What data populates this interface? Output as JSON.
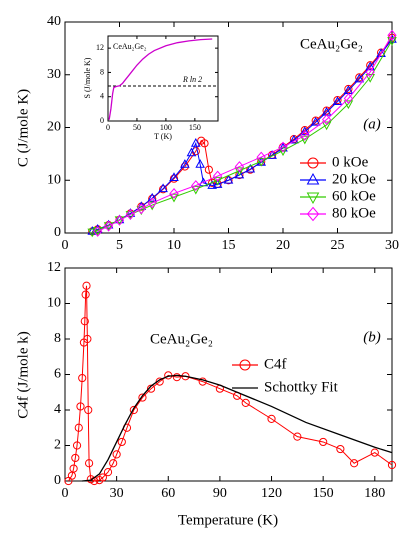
{
  "chart_data": [
    {
      "type": "line",
      "title": "CeAu₂Ge₂",
      "annotation": "(a)",
      "ylabel": "C (J/mole K)",
      "xlim": [
        0,
        30
      ],
      "xticks": [
        0,
        5,
        10,
        15,
        20,
        25,
        30
      ],
      "ylim": [
        0,
        40
      ],
      "yticks": [
        0,
        10,
        20,
        30,
        40
      ],
      "legend": "right",
      "series": [
        {
          "name": "0  kOe",
          "color": "#ff0000",
          "marker": "circle",
          "x": [
            2.5,
            3,
            4,
            5,
            6,
            7,
            8,
            9,
            10,
            11,
            12,
            12.5,
            12.8,
            13.2,
            13.5,
            14,
            15,
            16,
            17,
            18,
            19,
            20,
            21,
            22,
            23,
            24,
            25,
            26,
            27,
            28,
            29,
            30
          ],
          "values": [
            0.3,
            0.7,
            1.5,
            2.5,
            3.7,
            5,
            6.5,
            8.3,
            10.3,
            12.6,
            15.5,
            17.5,
            17,
            12,
            9.5,
            9.3,
            10,
            11,
            12,
            13.5,
            14.8,
            16.3,
            17.8,
            19.5,
            21.3,
            23.2,
            25.2,
            27.3,
            29.5,
            31.8,
            34.2,
            37
          ]
        },
        {
          "name": "20 kOe",
          "color": "#0000ff",
          "marker": "triangle-up",
          "x": [
            2.5,
            3,
            4,
            5,
            6,
            7,
            8,
            9,
            10,
            11,
            11.6,
            12,
            12.4,
            12.7,
            13.5,
            14,
            15,
            16,
            17,
            18,
            19,
            20,
            21,
            22,
            23,
            24,
            25,
            26,
            27,
            28,
            29,
            30
          ],
          "values": [
            0.3,
            0.7,
            1.5,
            2.5,
            3.7,
            5,
            6.6,
            8.4,
            10.5,
            13,
            15.2,
            17,
            13,
            9.5,
            9,
            9.2,
            10,
            11,
            12.1,
            13.4,
            14.7,
            16.1,
            17.6,
            19.2,
            21,
            22.9,
            24.9,
            27,
            29.2,
            31.5,
            34,
            36.7
          ]
        },
        {
          "name": "60 kOe",
          "color": "#33cc00",
          "marker": "triangle-down",
          "x": [
            2.5,
            3,
            4,
            5,
            6,
            7,
            8,
            10,
            12,
            14,
            16,
            18,
            20,
            22,
            24,
            26,
            28,
            30
          ],
          "values": [
            0.2,
            0.5,
            1.4,
            2.5,
            3.5,
            4.4,
            5.3,
            6.8,
            8.3,
            10,
            11.8,
            13.6,
            15.6,
            17.8,
            20.5,
            24.5,
            29.5,
            36.5
          ]
        },
        {
          "name": "80 kOe",
          "color": "#ff00ff",
          "marker": "diamond",
          "x": [
            3,
            4,
            5,
            6,
            7,
            8,
            10,
            12,
            14,
            16,
            18,
            20,
            22,
            24,
            26,
            28,
            30
          ],
          "values": [
            0.3,
            1.3,
            2.4,
            3.5,
            4.6,
            5.7,
            7.5,
            9,
            10.8,
            12.6,
            14.4,
            16.3,
            18.5,
            21.5,
            25.5,
            30.5,
            37.5
          ]
        }
      ]
    },
    {
      "type": "line",
      "title": "CeAu₂Ge₂",
      "xlabel": "T (K)",
      "ylabel": "S (J/mole K)",
      "xlim": [
        0,
        190
      ],
      "xticks": [
        0,
        50,
        100,
        150
      ],
      "ylim": [
        0,
        14
      ],
      "yticks": [
        0,
        4,
        8,
        12
      ],
      "reference_line": {
        "value": 5.76,
        "label": "R ln 2"
      },
      "series": [
        {
          "color": "#cc00cc",
          "marker": "none",
          "x": [
            2,
            5,
            8,
            10,
            12,
            15,
            20,
            25,
            30,
            40,
            50,
            60,
            70,
            80,
            100,
            120,
            140,
            160,
            180
          ],
          "values": [
            0.2,
            2,
            4.5,
            5.5,
            5.6,
            5.7,
            5.8,
            6.2,
            6.8,
            8,
            9.2,
            10.2,
            11,
            11.6,
            12.4,
            12.9,
            13.2,
            13.4,
            13.5
          ]
        }
      ]
    },
    {
      "type": "line",
      "title": "CeAu₂Ge₂",
      "annotation": "(b)",
      "xlabel": "Temperature (K)",
      "ylabel": "C4f (J/mole k)",
      "xlim": [
        0,
        190
      ],
      "xticks": [
        0,
        30,
        60,
        90,
        120,
        150,
        180
      ],
      "ylim": [
        0,
        12
      ],
      "yticks": [
        0,
        2,
        4,
        6,
        8,
        10,
        12
      ],
      "legend": "upper right",
      "series": [
        {
          "name": "C4f",
          "color": "#ff0000",
          "marker": "circle",
          "x": [
            2,
            4,
            5,
            6,
            7,
            8,
            9,
            10,
            11,
            11.5,
            12,
            12.5,
            13,
            13.5,
            14,
            15,
            17,
            20,
            22,
            25,
            28,
            30,
            33,
            36,
            40,
            45,
            50,
            55,
            60,
            65,
            70,
            80,
            90,
            100,
            105,
            120,
            135,
            150,
            160,
            168,
            180,
            190
          ],
          "values": [
            0,
            0.3,
            0.7,
            1.3,
            2,
            3,
            4.2,
            5.8,
            7.8,
            9,
            10.5,
            11,
            8,
            4,
            1,
            0.1,
            0,
            0.05,
            0.2,
            0.5,
            1,
            1.5,
            2.2,
            3,
            4,
            4.7,
            5.2,
            5.6,
            5.95,
            5.85,
            5.9,
            5.6,
            5.2,
            4.8,
            4.4,
            3.5,
            2.5,
            2.2,
            1.8,
            1,
            1.6,
            0.9
          ]
        },
        {
          "name": "Schottky Fit",
          "color": "#000000",
          "marker": "none",
          "x": [
            10,
            15,
            20,
            25,
            30,
            35,
            40,
            45,
            50,
            55,
            60,
            65,
            70,
            80,
            90,
            100,
            120,
            140,
            160,
            180,
            190
          ],
          "values": [
            0,
            0.05,
            0.4,
            1.2,
            2.2,
            3.2,
            4.1,
            4.8,
            5.35,
            5.7,
            5.9,
            5.95,
            5.9,
            5.7,
            5.4,
            5,
            4.2,
            3.3,
            2.6,
            1.9,
            1.6
          ]
        }
      ]
    }
  ]
}
